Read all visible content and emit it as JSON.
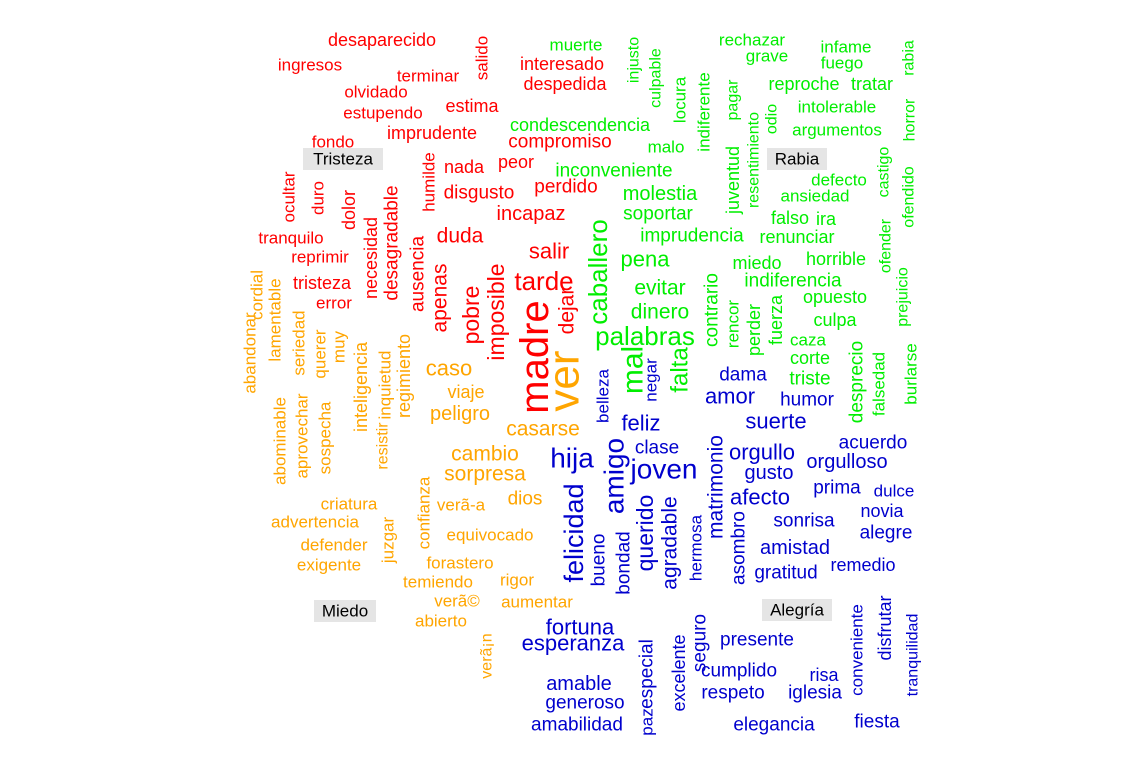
{
  "chart_data": {
    "type": "wordcloud",
    "title": "",
    "groups": [
      {
        "name": "Tristeza",
        "color": "#ff0000",
        "words": [
          "desaparecido",
          "ingresos",
          "salido",
          "terminar",
          "olvidado",
          "estupendo",
          "estima",
          "imprudente",
          "fondo",
          "humilde",
          "nada",
          "peor",
          "disgusto",
          "ocultar",
          "duro",
          "dolor",
          "necesidad",
          "desagradable",
          "tranquilo",
          "reprimir",
          "tristeza",
          "error",
          "ausencia",
          "apenas",
          "duda",
          "pobre",
          "imposible",
          "tarde",
          "salir",
          "dejar",
          "madre",
          "incapaz",
          "perdido",
          "interesado",
          "despedida",
          "compromiso"
        ]
      },
      {
        "name": "Rabia",
        "color": "#00ee00",
        "words": [
          "muerte",
          "injusto",
          "culpable",
          "locura",
          "indiferente",
          "pagar",
          "juventud",
          "resentimiento",
          "odio",
          "rechazar",
          "grave",
          "infame",
          "fuego",
          "rabia",
          "reproche",
          "tratar",
          "intolerable",
          "argumentos",
          "horror",
          "condescendencia",
          "malo",
          "inconveniente",
          "molestia",
          "soportar",
          "imprudencia",
          "renunciar",
          "ansiedad",
          "defecto",
          "castigo",
          "ofender",
          "ofendido",
          "falso",
          "ira",
          "pena",
          "miedo",
          "horrible",
          "prejuicio",
          "evitar",
          "indiferencia",
          "opuesto",
          "dinero",
          "palabras",
          "caballero",
          "mal",
          "falta",
          "contrario",
          "rencor",
          "perder",
          "fuerza",
          "culpa",
          "caza",
          "corte",
          "triste",
          "desprecio",
          "falsedad",
          "burlarse"
        ]
      },
      {
        "name": "Miedo",
        "color": "#ffa500",
        "words": [
          "abandonar",
          "cordial",
          "lamentable",
          "seriedad",
          "querer",
          "muy",
          "inteligencia",
          "inquietud",
          "regimiento",
          "abominable",
          "aprovechar",
          "sospecha",
          "resistir",
          "caso",
          "viaje",
          "peligro",
          "casarse",
          "cambio",
          "sorpresa",
          "dios",
          "confianza",
          "verã-a",
          "criatura",
          "advertencia",
          "juzgar",
          "equivocado",
          "defender",
          "exigente",
          "forastero",
          "temiendo",
          "rigor",
          "verã©",
          "aumentar",
          "abierto",
          "verã¡n",
          "ver"
        ]
      },
      {
        "name": "Alegría",
        "color": "#0000cd",
        "words": [
          "belleza",
          "negar",
          "amor",
          "humor",
          "dama",
          "feliz",
          "suerte",
          "clase",
          "matrimonio",
          "orgullo",
          "acuerdo",
          "hija",
          "joven",
          "amigo",
          "gusto",
          "orgulloso",
          "afecto",
          "prima",
          "dulce",
          "felicidad",
          "agradable",
          "querido",
          "bondad",
          "bueno",
          "hermosa",
          "asombro",
          "sonrisa",
          "novia",
          "amistad",
          "alegre",
          "remedio",
          "gratitud",
          "fortuna",
          "esperanza",
          "especial",
          "seguro",
          "paz",
          "excelente",
          "presente",
          "conveniente",
          "disfrutar",
          "tranquilidad",
          "amable",
          "generoso",
          "amabilidad",
          "cumplido",
          "respeto",
          "iglesia",
          "risa",
          "elegancia",
          "fiesta"
        ]
      }
    ]
  }
}
